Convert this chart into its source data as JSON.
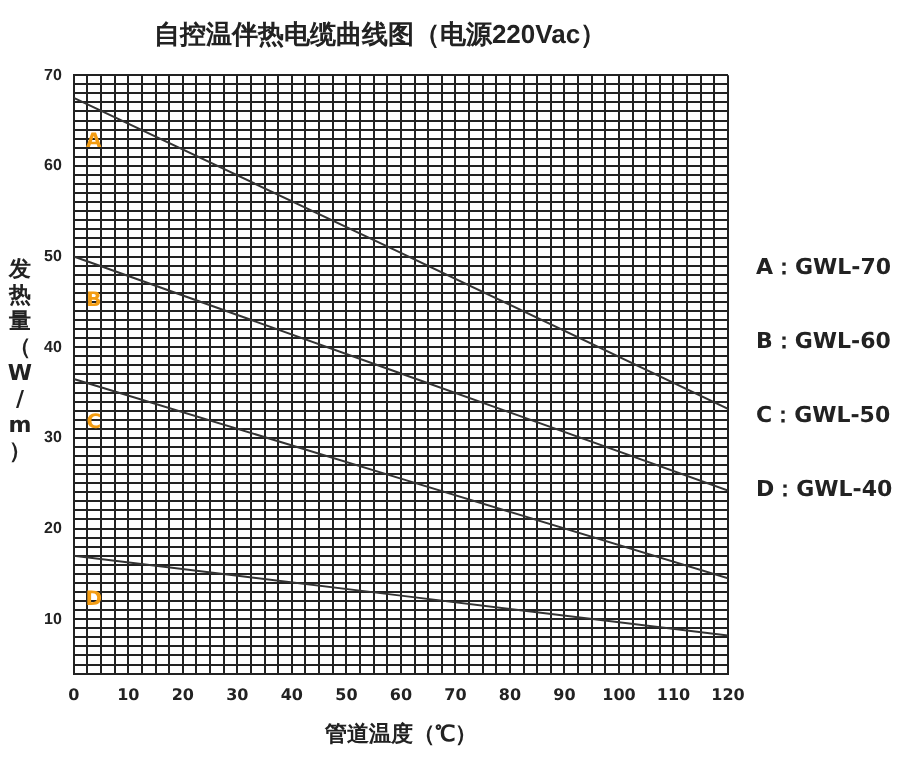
{
  "chart_data": {
    "type": "line",
    "title": "自控温伴热电缆曲线图（电源220Vac）",
    "xlabel": "管道温度（℃）",
    "ylabel": "发热量（W/m）",
    "x": [
      0,
      60,
      120
    ],
    "series": [
      {
        "name": "A",
        "color": "#333333",
        "values": [
          67.5,
          50.4,
          33.2
        ]
      },
      {
        "name": "B",
        "color": "#333333",
        "values": [
          50,
          37.1,
          24.2
        ]
      },
      {
        "name": "C",
        "color": "#333333",
        "values": [
          36.5,
          25.5,
          14.5
        ]
      },
      {
        "name": "D",
        "color": "#333333",
        "values": [
          17,
          12.6,
          8.2
        ]
      }
    ],
    "annotations": [
      "A：GWL-70",
      "B：GWL-60",
      "C：GWL-50",
      "D：GWL-40"
    ],
    "xlim": [
      0,
      120
    ],
    "ylim": [
      4,
      70
    ],
    "xticks": [
      0,
      {
        "value": 2.5,
        "label": null
      },
      {
        "value": 5,
        "label": null
      },
      {
        "value": 7.5,
        "label": null
      },
      10,
      {
        "value": 12.5,
        "label": null
      },
      {
        "value": 15,
        "label": null
      },
      {
        "value": 17.5,
        "label": null
      },
      20,
      {
        "value": 22.5,
        "label": null
      },
      {
        "value": 25,
        "label": null
      },
      {
        "value": 27.5,
        "label": null
      },
      30,
      {
        "value": 32.5,
        "label": null
      },
      {
        "value": 35,
        "label": null
      },
      {
        "value": 37.5,
        "label": null
      },
      40,
      {
        "value": 42.5,
        "label": null
      },
      {
        "value": 45,
        "label": null
      },
      {
        "value": 47.5,
        "label": null
      },
      50,
      {
        "value": 52.5,
        "label": null
      },
      {
        "value": 55,
        "label": null
      },
      {
        "value": 57.5,
        "label": null
      },
      60,
      {
        "value": 62.5,
        "label": null
      },
      {
        "value": 65,
        "label": null
      },
      {
        "value": 67.5,
        "label": null
      },
      70,
      {
        "value": 72.5,
        "label": null
      },
      {
        "value": 75,
        "label": null
      },
      {
        "value": 77.5,
        "label": null
      },
      80,
      {
        "value": 82.5,
        "label": null
      },
      {
        "value": 85,
        "label": null
      },
      {
        "value": 87.5,
        "label": null
      },
      90,
      {
        "value": 92.5,
        "label": null
      },
      {
        "value": 95,
        "label": null
      },
      {
        "value": 97.5,
        "label": null
      },
      100,
      {
        "value": 102.5,
        "label": null
      },
      {
        "value": 105,
        "label": null
      },
      {
        "value": 107.5,
        "label": null
      },
      110,
      {
        "value": 112.5,
        "label": null
      },
      {
        "value": 115,
        "label": null
      },
      {
        "value": 117.5,
        "label": null
      },
      120
    ],
    "yticks": [
      {
        "value": 4,
        "label": null
      },
      {
        "value": 5,
        "label": null
      },
      {
        "value": 6,
        "label": null
      },
      {
        "value": 7,
        "label": null
      },
      {
        "value": 8,
        "label": null
      },
      {
        "value": 9,
        "label": null
      },
      10,
      {
        "value": 11,
        "label": null
      },
      {
        "value": 12,
        "label": null
      },
      {
        "value": 13,
        "label": null
      },
      {
        "value": 14,
        "label": null
      },
      {
        "value": 15,
        "label": null
      },
      {
        "value": 16,
        "label": null
      },
      {
        "value": 17,
        "label": null
      },
      {
        "value": 18,
        "label": null
      },
      {
        "value": 19,
        "label": null
      },
      20,
      {
        "value": 21,
        "label": null
      },
      {
        "value": 22,
        "label": null
      },
      {
        "value": 23,
        "label": null
      },
      {
        "value": 24,
        "label": null
      },
      {
        "value": 25,
        "label": null
      },
      {
        "value": 26,
        "label": null
      },
      {
        "value": 27,
        "label": null
      },
      {
        "value": 28,
        "label": null
      },
      {
        "value": 29,
        "label": null
      },
      30,
      {
        "value": 31,
        "label": null
      },
      {
        "value": 32,
        "label": null
      },
      {
        "value": 33,
        "label": null
      },
      {
        "value": 34,
        "label": null
      },
      {
        "value": 35,
        "label": null
      },
      {
        "value": 36,
        "label": null
      },
      {
        "value": 37,
        "label": null
      },
      {
        "value": 38,
        "label": null
      },
      {
        "value": 39,
        "label": null
      },
      40,
      {
        "value": 41,
        "label": null
      },
      {
        "value": 42,
        "label": null
      },
      {
        "value": 43,
        "label": null
      },
      {
        "value": 44,
        "label": null
      },
      {
        "value": 45,
        "label": null
      },
      {
        "value": 46,
        "label": null
      },
      {
        "value": 47,
        "label": null
      },
      {
        "value": 48,
        "label": null
      },
      {
        "value": 49,
        "label": null
      },
      50,
      {
        "value": 51,
        "label": null
      },
      {
        "value": 52,
        "label": null
      },
      {
        "value": 53,
        "label": null
      },
      {
        "value": 54,
        "label": null
      },
      {
        "value": 55,
        "label": null
      },
      {
        "value": 56,
        "label": null
      },
      {
        "value": 57,
        "label": null
      },
      {
        "value": 58,
        "label": null
      },
      {
        "value": 59,
        "label": null
      },
      60,
      {
        "value": 61,
        "label": null
      },
      {
        "value": 62,
        "label": null
      },
      {
        "value": 63,
        "label": null
      },
      {
        "value": 64,
        "label": null
      },
      {
        "value": 65,
        "label": null
      },
      {
        "value": 66,
        "label": null
      },
      {
        "value": 67,
        "label": null
      },
      {
        "value": 68,
        "label": null
      },
      {
        "value": 69,
        "label": null
      },
      70
    ],
    "grid": true,
    "legend": false,
    "marker": "none",
    "line_style": "solid"
  }
}
